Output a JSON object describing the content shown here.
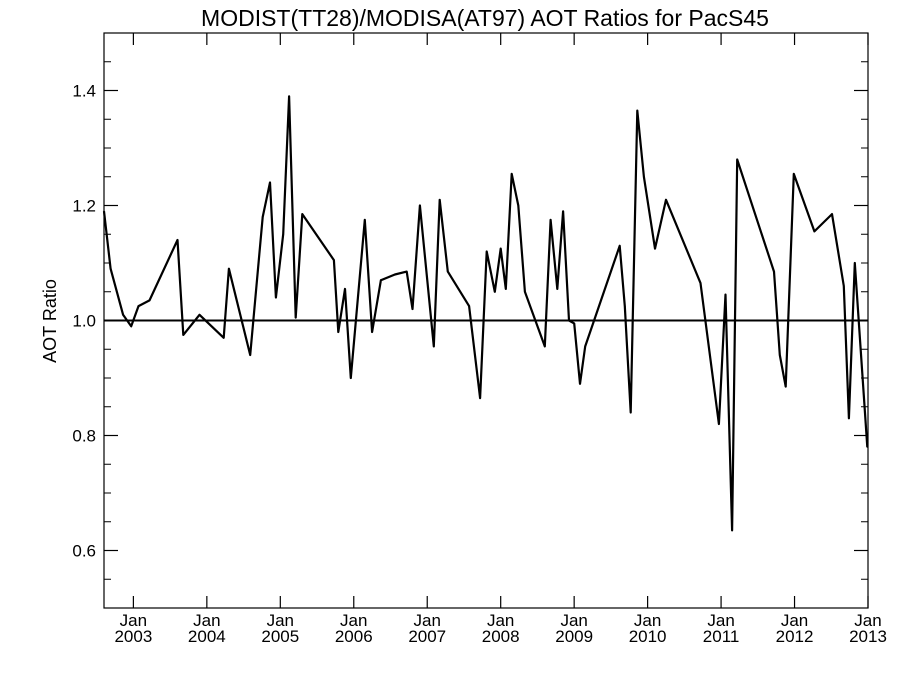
{
  "chart_data": {
    "type": "line",
    "title": "MODIST(TT28)/MODISA(AT97)  AOT Ratios for PacS45",
    "xlabel": "",
    "ylabel": "AOT Ratio",
    "xlim": [
      2002.6,
      2013.0
    ],
    "ylim": [
      0.5,
      1.5
    ],
    "y_ticks": [
      0.6,
      0.8,
      1.0,
      1.2,
      1.4
    ],
    "y_tick_labels": [
      "0.6",
      "0.8",
      "1.0",
      "1.2",
      "1.4"
    ],
    "x_ticks": [
      {
        "month": "Jan",
        "year": "2003",
        "x": 2003.0
      },
      {
        "month": "Jan",
        "year": "2004",
        "x": 2004.0
      },
      {
        "month": "Jan",
        "year": "2005",
        "x": 2005.0
      },
      {
        "month": "Jan",
        "year": "2006",
        "x": 2006.0
      },
      {
        "month": "Jan",
        "year": "2007",
        "x": 2007.0
      },
      {
        "month": "Jan",
        "year": "2008",
        "x": 2008.0
      },
      {
        "month": "Jan",
        "year": "2009",
        "x": 2009.0
      },
      {
        "month": "Jan",
        "year": "2010",
        "x": 2010.0
      },
      {
        "month": "Jan",
        "year": "2011",
        "x": 2011.0
      },
      {
        "month": "Jan",
        "year": "2012",
        "x": 2012.0
      },
      {
        "month": "Jan",
        "year": "2013",
        "x": 2013.0
      }
    ],
    "reference_line": 1.0,
    "grid": false,
    "line_color": "#000000",
    "series": [
      {
        "x": [
          2002.6,
          2002.69,
          2002.86,
          2002.97,
          2003.07,
          2003.22,
          2003.6,
          2003.68,
          2003.9,
          2004.23,
          2004.3,
          2004.59,
          2004.76,
          2004.86,
          2004.94,
          2005.04,
          2005.12,
          2005.21,
          2005.3,
          2005.73,
          2005.79,
          2005.88,
          2005.96,
          2006.15,
          2006.25,
          2006.37,
          2006.56,
          2006.72,
          2006.8,
          2006.9,
          2007.09,
          2007.17,
          2007.28,
          2007.57,
          2007.72,
          2007.81,
          2007.92,
          2008.0,
          2008.07,
          2008.15,
          2008.24,
          2008.33,
          2008.6,
          2008.68,
          2008.77,
          2008.85,
          2008.93,
          2009.0,
          2009.08,
          2009.15,
          2009.62,
          2009.69,
          2009.77,
          2009.86,
          2009.95,
          2010.1,
          2010.25,
          2010.72,
          2010.97,
          2011.06,
          2011.15,
          2011.22,
          2011.72,
          2011.8,
          2011.88,
          2011.99,
          2012.27,
          2012.51,
          2012.67,
          2012.74,
          2012.82,
          2012.99
        ],
        "y": [
          1.19,
          1.09,
          1.01,
          0.99,
          1.025,
          1.035,
          1.14,
          0.975,
          1.01,
          0.97,
          1.09,
          0.94,
          1.18,
          1.24,
          1.04,
          1.15,
          1.39,
          1.005,
          1.185,
          1.105,
          0.98,
          1.055,
          0.9,
          1.175,
          0.98,
          1.07,
          1.08,
          1.085,
          1.02,
          1.2,
          0.955,
          1.21,
          1.085,
          1.025,
          0.865,
          1.12,
          1.05,
          1.125,
          1.055,
          1.255,
          1.2,
          1.05,
          0.955,
          1.175,
          1.055,
          1.19,
          1.0,
          0.995,
          0.89,
          0.955,
          1.13,
          1.025,
          0.84,
          1.365,
          1.25,
          1.125,
          1.21,
          1.065,
          0.82,
          1.045,
          0.635,
          1.28,
          1.085,
          0.94,
          0.885,
          1.255,
          1.155,
          1.185,
          1.06,
          0.83,
          1.1,
          0.78
        ]
      }
    ]
  }
}
